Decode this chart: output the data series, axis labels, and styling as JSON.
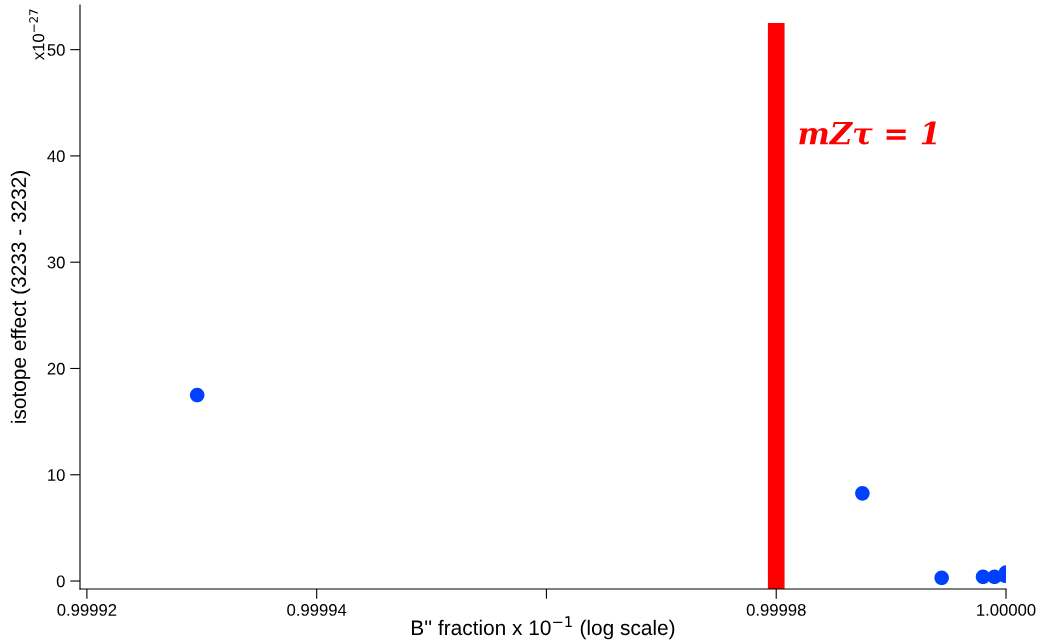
{
  "chart_data": {
    "type": "scatter",
    "xlabel": "B'' fraction x 10$^{−1}$ (log scale)",
    "ylabel": "isotope effect (3233 - 3232)",
    "annotations": [
      "x10$^{−27}$"
    ],
    "log": "x",
    "x": [
      0.9999296,
      0.9999875,
      0.9999944,
      0.999998,
      0.999999,
      0.9999999,
      1.0
    ],
    "series": [
      {
        "color": "#0041ff",
        "values": [
          17.5,
          8.25,
          0.3,
          0.4,
          0.4,
          0.5,
          0.8
        ]
      }
    ],
    "marker": "circle",
    "xlim": [
      0.9999194,
      1.0
    ],
    "xticks": [
      0.99992,
      0.99994,
      {
        "value": 0.99996,
        "label": null
      },
      0.99998,
      {
        "value": 1.0,
        "label": "1.00000"
      }
    ],
    "ylim": [
      -0.75,
      54.2
    ],
    "yticks": [
      0,
      10,
      20,
      30,
      40,
      50
    ],
    "ref_lines": [
      {
        "axis": "x",
        "value": 0.99998,
        "label": "mZτ = 1",
        "color": "#ff0000"
      }
    ],
    "grid": false,
    "legend": false
  }
}
